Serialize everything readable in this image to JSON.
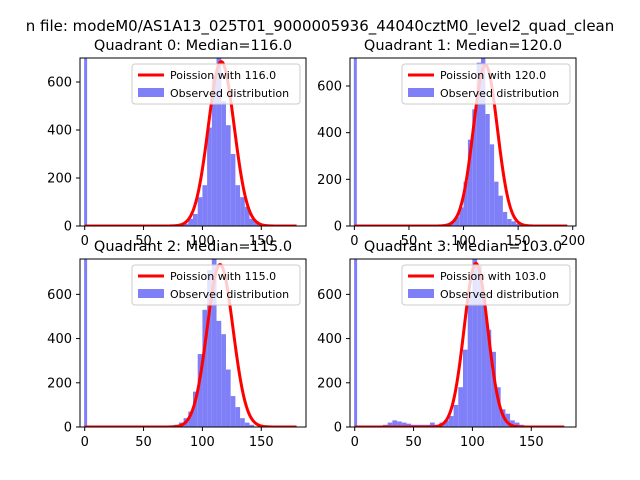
{
  "figure": {
    "suptitle": "n file: modeM0/AS1A13_025T01_9000005936_44040cztM0_level2_quad_clean"
  },
  "chart_data": [
    {
      "type": "bar",
      "title": "Quadrant 0: Median=116.0",
      "median": 116.0,
      "xlim": [
        -4,
        188
      ],
      "ylim": [
        0,
        700
      ],
      "xticks": [
        0,
        50,
        100,
        150
      ],
      "yticks": [
        0,
        200,
        400,
        600
      ],
      "legend": {
        "position": "top-right",
        "fit_label": "Poission with 116.0",
        "hist_label": "Observed distribution"
      },
      "colors": {
        "fit": "#ff0000",
        "hist": "#7f7ff8"
      },
      "spike": {
        "x": 0,
        "value": 700
      },
      "fit_peak": 685,
      "fit_sigma": 11,
      "bin_width": 4,
      "bins_start": 80,
      "counts": [
        0,
        10,
        30,
        50,
        120,
        170,
        410,
        620,
        820,
        520,
        420,
        300,
        170,
        120,
        80,
        30,
        20,
        10,
        0,
        0
      ],
      "fit_xrange": [
        0,
        180
      ]
    },
    {
      "type": "bar",
      "title": "Quadrant 1: Median=120.0",
      "median": 120.0,
      "xlim": [
        -4,
        203
      ],
      "ylim": [
        0,
        720
      ],
      "xticks": [
        0,
        50,
        100,
        150,
        200
      ],
      "yticks": [
        0,
        200,
        400,
        600
      ],
      "legend": {
        "position": "top-right",
        "fit_label": "Poission with 120.0",
        "hist_label": "Observed distribution"
      },
      "colors": {
        "fit": "#ff0000",
        "hist": "#7f7ff8"
      },
      "spike": {
        "x": 0,
        "value": 720
      },
      "fit_peak": 690,
      "fit_sigma": 11,
      "bin_width": 4,
      "bins_start": 80,
      "counts": [
        0,
        10,
        20,
        40,
        80,
        190,
        370,
        500,
        700,
        810,
        480,
        350,
        190,
        130,
        60,
        30,
        20,
        10,
        0,
        0
      ],
      "fit_xrange": [
        0,
        195
      ]
    },
    {
      "type": "bar",
      "title": "Quadrant 2: Median=115.0",
      "median": 115.0,
      "xlim": [
        -4,
        188
      ],
      "ylim": [
        0,
        760
      ],
      "xticks": [
        0,
        50,
        100,
        150
      ],
      "yticks": [
        0,
        200,
        400,
        600
      ],
      "legend": {
        "position": "top-right",
        "fit_label": "Poission with 115.0",
        "hist_label": "Observed distribution"
      },
      "colors": {
        "fit": "#ff0000",
        "hist": "#7f7ff8"
      },
      "spike": {
        "x": 0,
        "value": 760
      },
      "fit_peak": 735,
      "fit_sigma": 11,
      "bin_width": 4,
      "bins_start": 76,
      "counts": [
        10,
        20,
        40,
        70,
        160,
        330,
        530,
        710,
        780,
        480,
        420,
        260,
        140,
        90,
        40,
        20,
        10,
        0,
        0
      ],
      "fit_xrange": [
        0,
        180
      ]
    },
    {
      "type": "bar",
      "title": "Quadrant 3: Median=103.0",
      "median": 103.0,
      "xlim": [
        -4,
        188
      ],
      "ylim": [
        0,
        760
      ],
      "xticks": [
        0,
        50,
        100,
        150
      ],
      "yticks": [
        0,
        200,
        400,
        600
      ],
      "legend": {
        "position": "top-right",
        "fit_label": "Poission with 103.0",
        "hist_label": "Observed distribution"
      },
      "colors": {
        "fit": "#ff0000",
        "hist": "#7f7ff8"
      },
      "spike": {
        "x": 0,
        "value": 760
      },
      "fit_peak": 740,
      "fit_sigma": 10,
      "bin_width": 4,
      "bins_start": 20,
      "counts": [
        0,
        10,
        20,
        30,
        25,
        20,
        15,
        10,
        10,
        10,
        10,
        20,
        10,
        20,
        30,
        50,
        100,
        180,
        350,
        600,
        790,
        730,
        600,
        440,
        340,
        180,
        80,
        60,
        30,
        20,
        10,
        0,
        0,
        0,
        0,
        0,
        0,
        0,
        0,
        0
      ],
      "fit_xrange": [
        0,
        178
      ]
    }
  ]
}
